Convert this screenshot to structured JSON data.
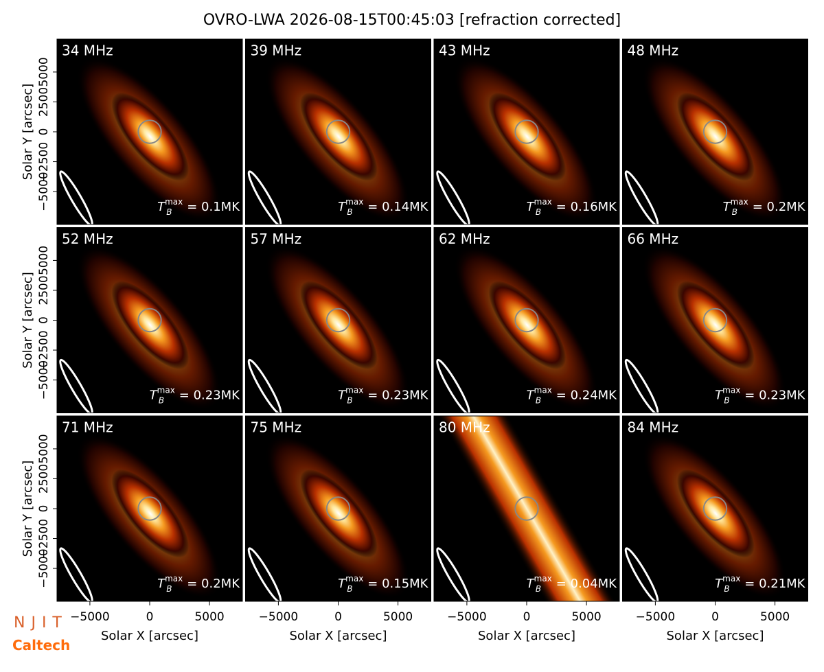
{
  "chart_data": {
    "type": "image-grid",
    "title": "OVRO-LWA 2026-08-15T00:45:03 [refraction corrected]",
    "x_label": "Solar X [arcsec]",
    "y_label": "Solar Y [arcsec]",
    "xlim": [
      -7750,
      7750
    ],
    "ylim": [
      -7750,
      7750
    ],
    "xticks": [
      {
        "value": -5000,
        "label": "−5000"
      },
      0,
      5000
    ],
    "yticks": [
      {
        "value": -5000,
        "label": "−5000"
      },
      {
        "value": -2500,
        "label": "−2500"
      },
      0,
      2500,
      5000
    ],
    "categories": [
      "34 MHz",
      "39 MHz",
      "43 MHz",
      "48 MHz",
      "52 MHz",
      "57 MHz",
      "62 MHz",
      "66 MHz",
      "71 MHz",
      "75 MHz",
      "80 MHz",
      "84 MHz"
    ],
    "values": [
      0.1,
      0.14,
      0.16,
      0.2,
      0.23,
      0.23,
      0.24,
      0.23,
      0.2,
      0.15,
      0.04,
      0.21
    ],
    "value_labels": [
      "0.1MK",
      "0.14MK",
      "0.16MK",
      "0.2MK",
      "0.23MK",
      "0.23MK",
      "0.24MK",
      "0.23MK",
      "0.2MK",
      "0.15MK",
      "0.04MK",
      "0.21MK"
    ],
    "tmax_symbol": {
      "base": "T",
      "sub": "B",
      "sup": "max",
      "equals": " = "
    },
    "logos": [
      "NJIT",
      "Caltech"
    ]
  }
}
